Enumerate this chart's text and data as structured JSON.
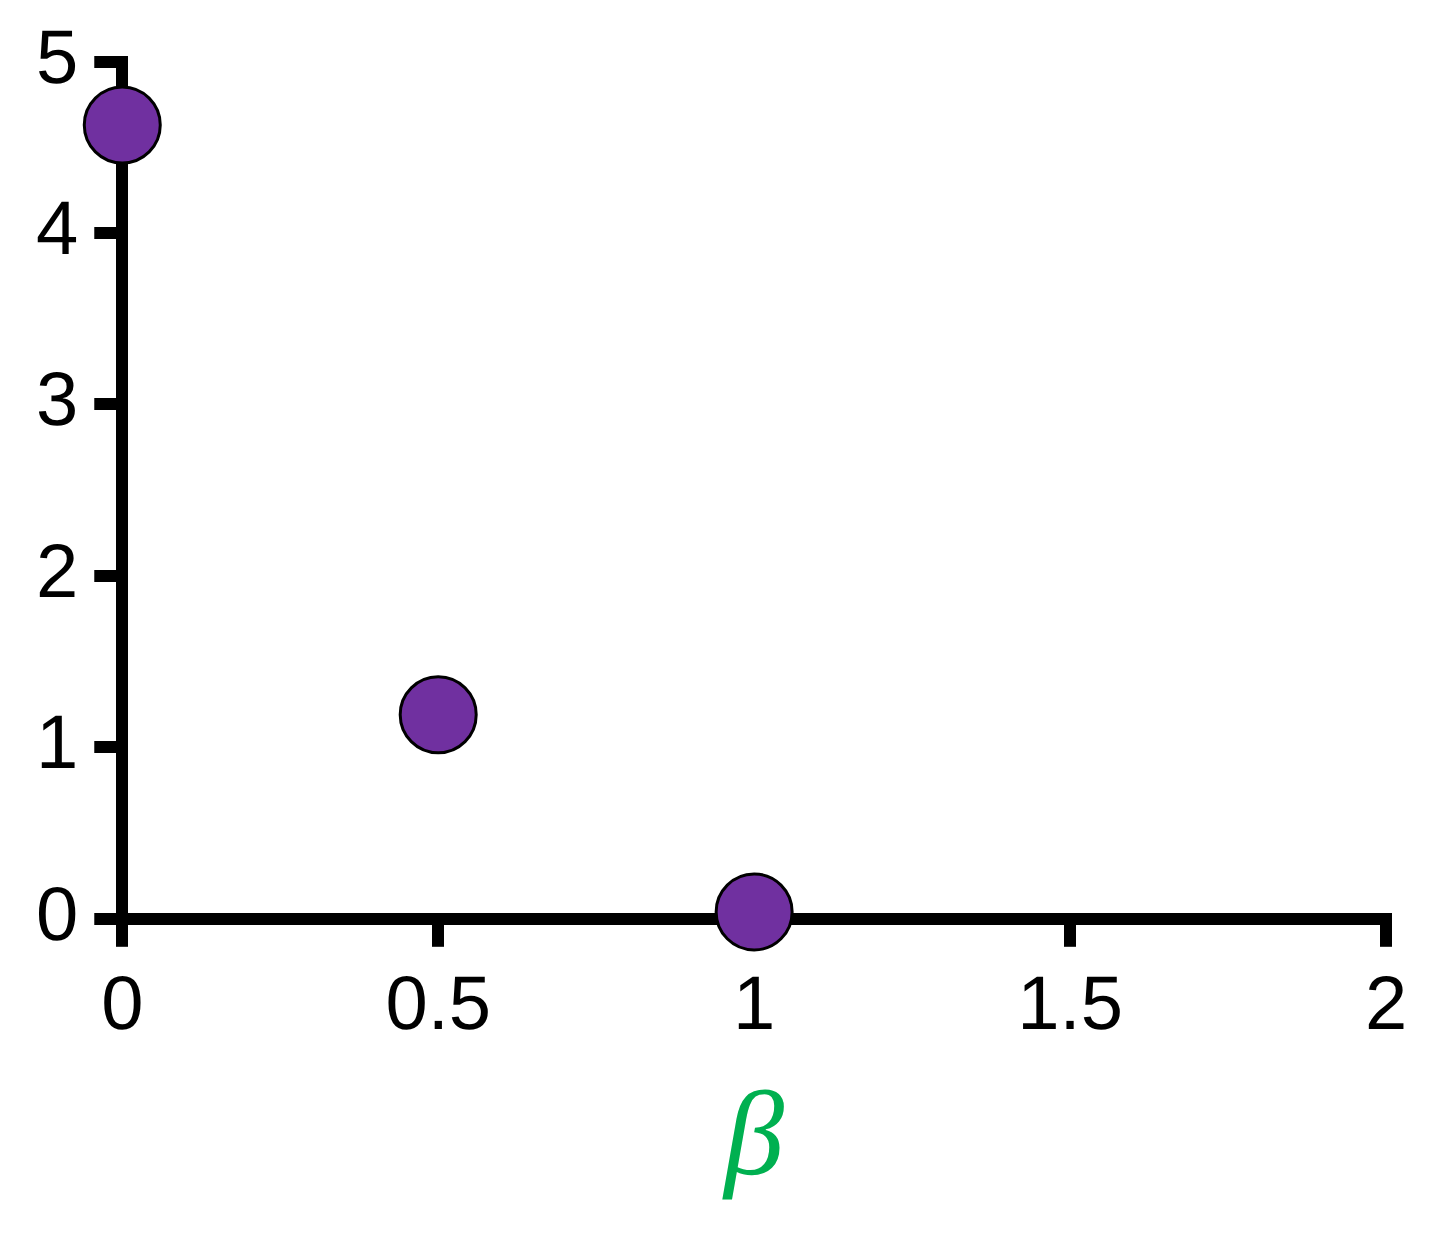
{
  "chart_data": {
    "type": "scatter",
    "xlabel": "β",
    "x": [
      0,
      0.5,
      1
    ],
    "series": [
      {
        "color": "#7030a0",
        "values": [
          4.63,
          1.19,
          0.04
        ]
      }
    ],
    "xlim": [
      0,
      2
    ],
    "xticks": [
      0,
      0.5,
      1,
      1.5,
      2
    ],
    "ylim": [
      0,
      5
    ],
    "yticks": [
      0,
      1,
      2,
      3,
      4,
      5
    ],
    "grid": false,
    "legend": false,
    "marker": "circle"
  }
}
